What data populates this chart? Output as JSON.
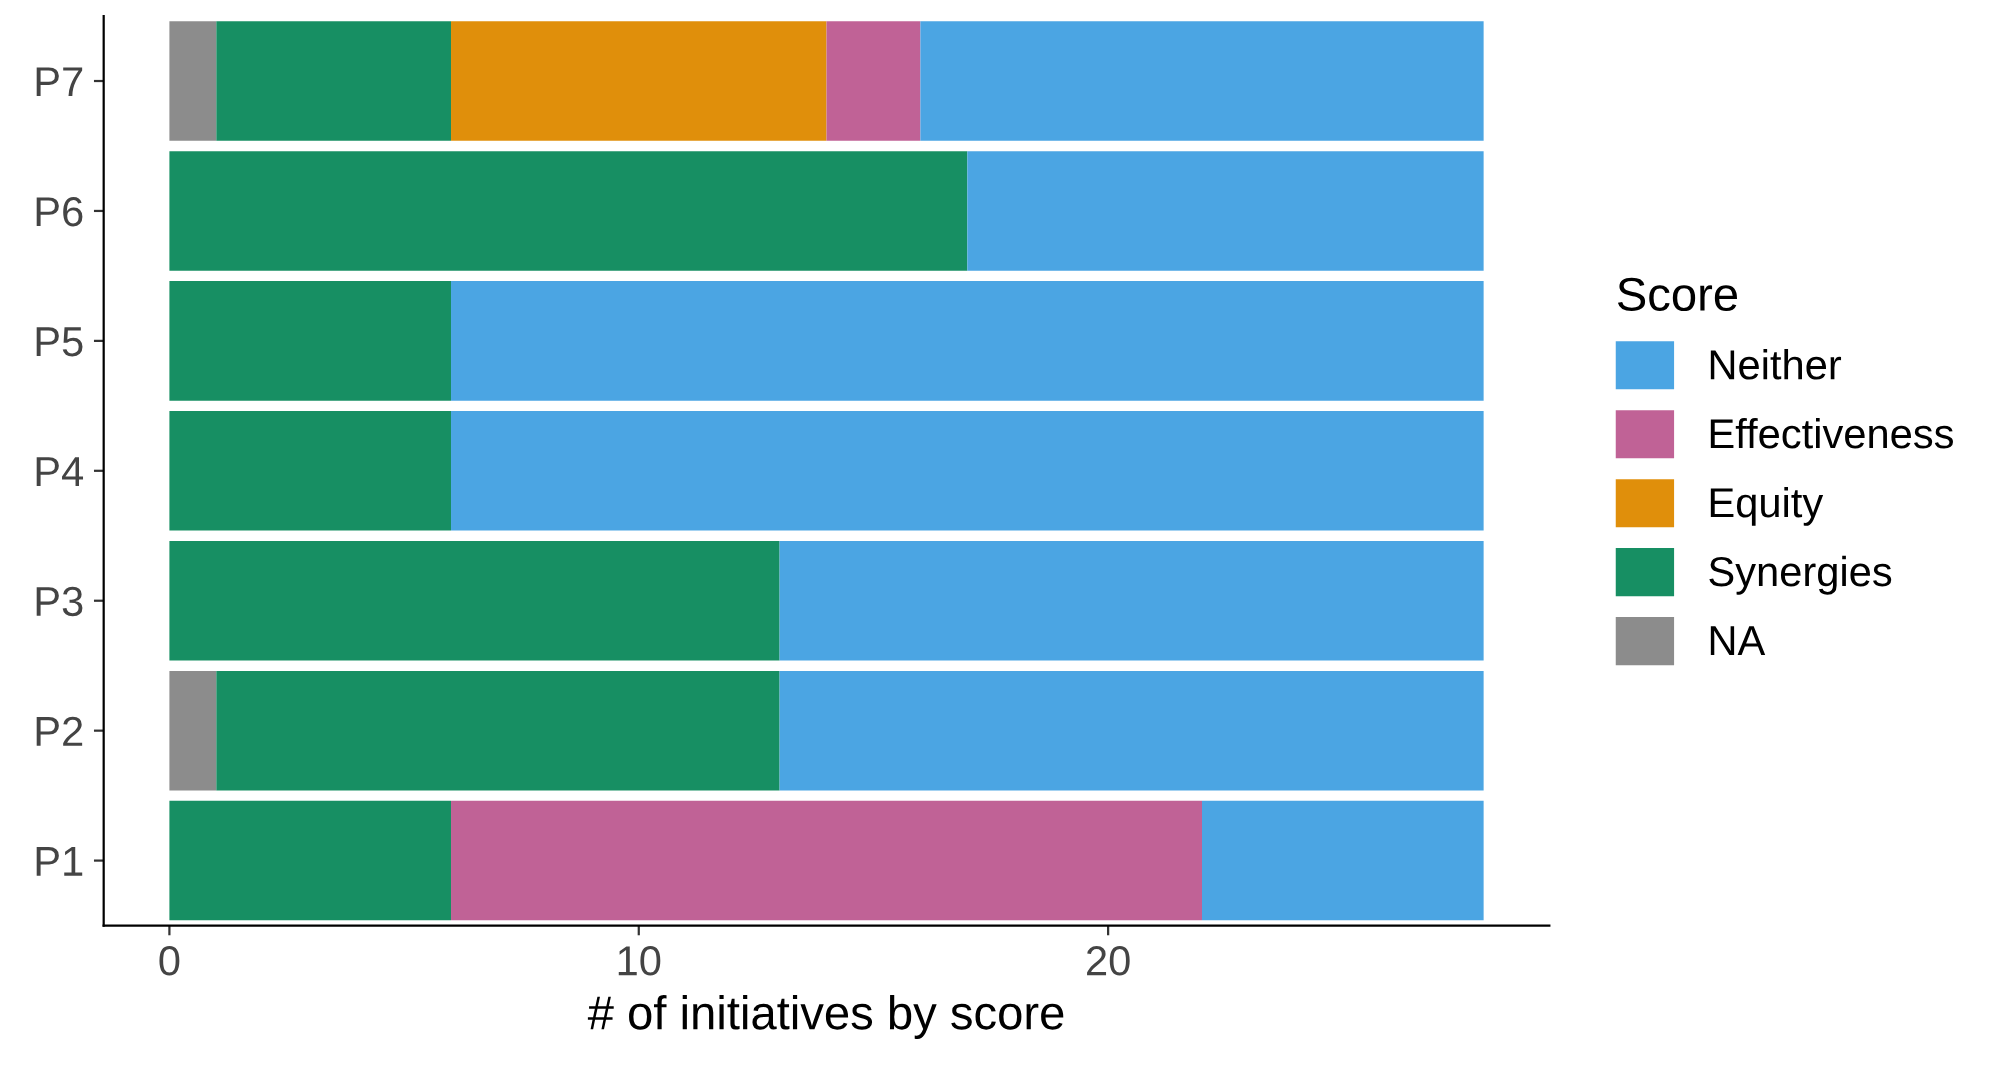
{
  "chart_data": {
    "type": "bar",
    "orientation": "horizontal",
    "stacked": true,
    "xlabel": "# of initiatives by score",
    "legend_title": "Score",
    "legend": "right",
    "grid": false,
    "categories": [
      "P7",
      "P6",
      "P5",
      "P4",
      "P3",
      "P2",
      "P1"
    ],
    "xlim": [
      -1.4,
      29.4
    ],
    "xticks": [
      0,
      10,
      20
    ],
    "series": [
      {
        "name": "NA",
        "color": "#8c8c8c",
        "values": [
          1,
          0,
          0,
          0,
          0,
          1,
          0
        ]
      },
      {
        "name": "Synergies",
        "color": "#178f63",
        "values": [
          5,
          17,
          6,
          6,
          13,
          12,
          6
        ]
      },
      {
        "name": "Equity",
        "color": "#e08f0b",
        "values": [
          8,
          0,
          0,
          0,
          0,
          0,
          0
        ]
      },
      {
        "name": "Effectiveness",
        "color": "#c06296",
        "values": [
          2,
          0,
          0,
          0,
          0,
          0,
          16
        ]
      },
      {
        "name": "Neither",
        "color": "#4ba5e3",
        "values": [
          12,
          11,
          22,
          22,
          15,
          15,
          6
        ]
      }
    ]
  }
}
